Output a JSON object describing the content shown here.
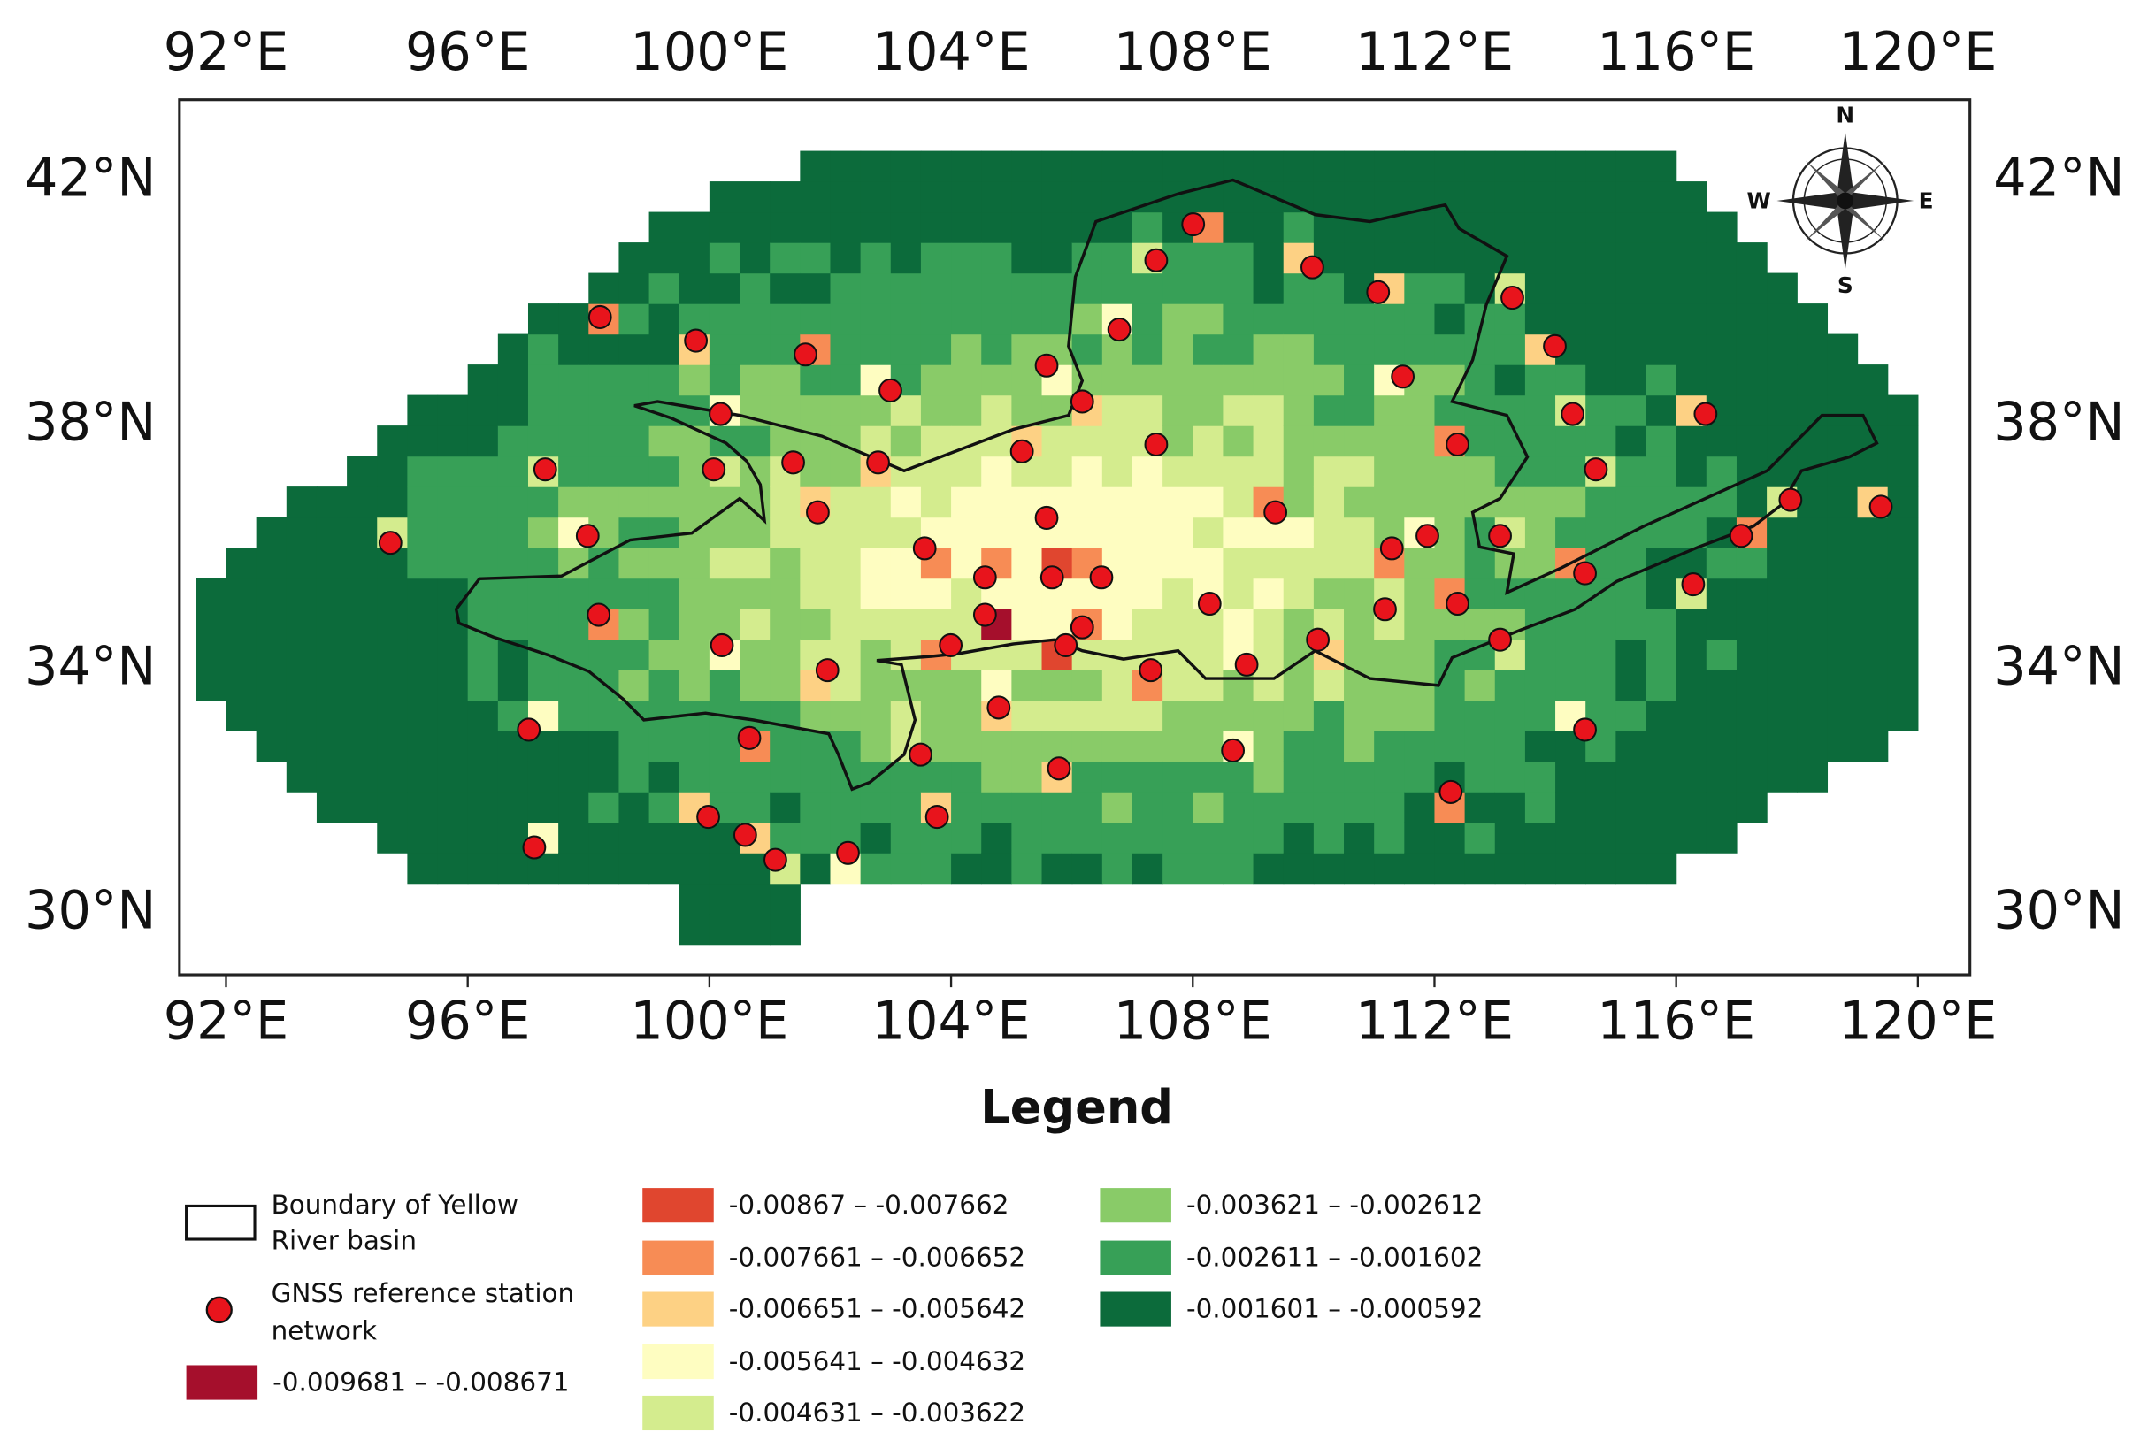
{
  "map": {
    "lon_labels": [
      "92°E",
      "96°E",
      "100°E",
      "104°E",
      "108°E",
      "112°E",
      "116°E",
      "120°E"
    ],
    "lat_labels": [
      "42°N",
      "38°N",
      "34°N",
      "30°N"
    ],
    "compass": {
      "n": "N",
      "s": "S",
      "e": "E",
      "w": "W"
    },
    "legend": {
      "title": "Legend",
      "boundary": [
        "Boundary of Yellow",
        "River basin"
      ],
      "stations": [
        "GNSS reference station",
        "network"
      ],
      "classes": [
        {
          "label": "-0.009681 – -0.008671",
          "color": "#a50f2c"
        },
        {
          "label": "-0.00867 – -0.007662",
          "color": "#e0462f"
        },
        {
          "label": "-0.007661 – -0.006652",
          "color": "#f78c55"
        },
        {
          "label": "-0.006651 – -0.005642",
          "color": "#fdd184"
        },
        {
          "label": "-0.005641 – -0.004632",
          "color": "#fefdc1"
        },
        {
          "label": "-0.004631 – -0.003622",
          "color": "#d4ec8e"
        },
        {
          "label": "-0.003621 – -0.002612",
          "color": "#89cb68"
        },
        {
          "label": "-0.002611 – -0.001602",
          "color": "#37a057"
        },
        {
          "label": "-0.001601 – -0.000592",
          "color": "#0c6b3b"
        }
      ]
    }
  }
}
